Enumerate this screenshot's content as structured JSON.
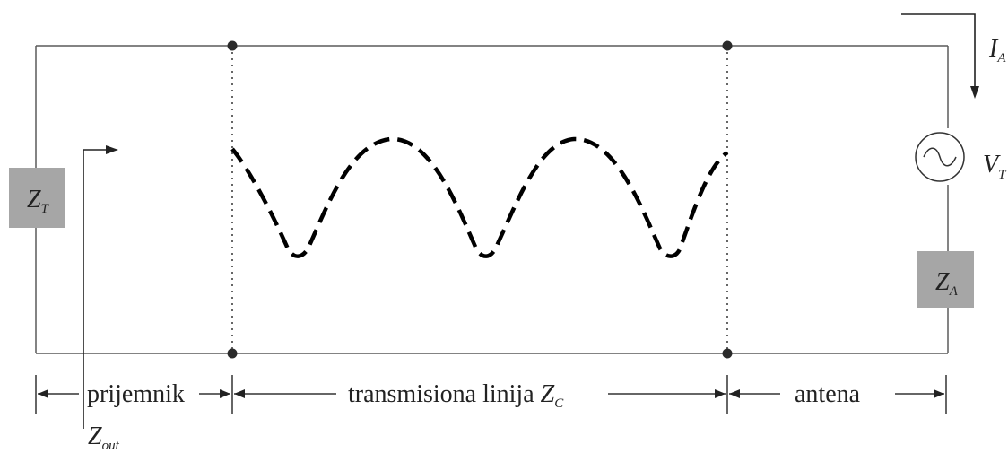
{
  "labels": {
    "receiver": "prijemnik",
    "line": "transmisiona linija",
    "antenna": "antena"
  },
  "symbols": {
    "zt": {
      "main": "Z",
      "sub": "T"
    },
    "za": {
      "main": "Z",
      "sub": "A"
    },
    "zc": {
      "main": "Z",
      "sub": "C"
    },
    "zout": {
      "main": "Z",
      "sub": "out"
    },
    "ia": {
      "main": "I",
      "sub": "A"
    },
    "vt": {
      "main": "V",
      "sub": "T"
    }
  },
  "colors": {
    "impedance_box": "#a6a6a6",
    "wire": "#5a5a5a",
    "wave": "#000000"
  }
}
